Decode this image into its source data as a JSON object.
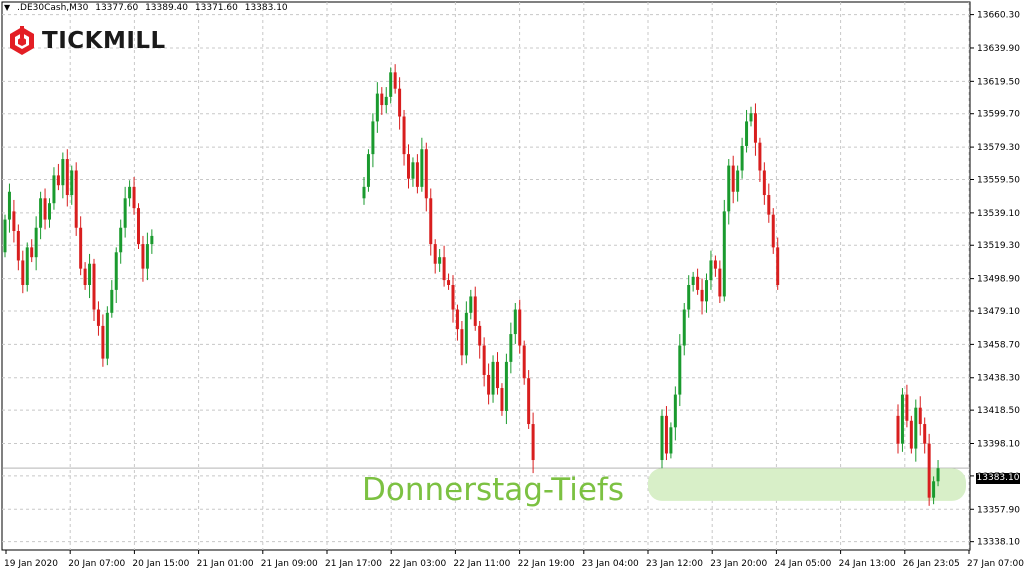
{
  "header": {
    "symbol": ".DE30Cash,M30",
    "open": "13377.60",
    "high": "13389.40",
    "low": "13371.60",
    "close": "13383.10"
  },
  "logo": {
    "text": "TICKMILL",
    "color": "#e31e24"
  },
  "annotation": {
    "text": "Donnerstag-Tiefs",
    "color": "#7cc142",
    "zone_low": 13363,
    "zone_high": 13383
  },
  "current_price": {
    "label": "13383.10",
    "value": 13383.1
  },
  "colors": {
    "bull": "#1a9a2e",
    "bear": "#d81e1e",
    "grid": "#c8c8c8",
    "zone": "#d8efc8"
  },
  "chart_data": {
    "type": "candlestick",
    "y_range": [
      13333,
      13668
    ],
    "y_ticks": [
      "13660.30",
      "13639.90",
      "13619.50",
      "13599.70",
      "13579.30",
      "13559.50",
      "13539.10",
      "13519.30",
      "13498.90",
      "13479.10",
      "13458.70",
      "13438.30",
      "13418.50",
      "13398.10",
      "13378.30",
      "13357.90",
      "13338.10"
    ],
    "x_ticks": [
      "19 Jan 2020",
      "20 Jan 07:00",
      "20 Jan 15:00",
      "21 Jan 01:00",
      "21 Jan 09:00",
      "21 Jan 17:00",
      "22 Jan 03:00",
      "22 Jan 11:00",
      "22 Jan 19:00",
      "23 Jan 04:00",
      "23 Jan 12:00",
      "23 Jan 20:00",
      "24 Jan 05:00",
      "24 Jan 13:00",
      "26 Jan 23:05",
      "27 Jan 07:00"
    ],
    "grid": true,
    "series": [
      {
        "points": [
          [
            13515,
            13535
          ],
          [
            13535,
            13552
          ],
          [
            13540,
            13528
          ],
          [
            13528,
            13510
          ],
          [
            13510,
            13495
          ],
          [
            13495,
            13518
          ],
          [
            13518,
            13512
          ],
          [
            13512,
            13530
          ],
          [
            13530,
            13548
          ],
          [
            13548,
            13535
          ],
          [
            13535,
            13545
          ],
          [
            13545,
            13562
          ],
          [
            13562,
            13556
          ],
          [
            13556,
            13572
          ],
          [
            13572,
            13550
          ],
          [
            13550,
            13565
          ],
          [
            13565,
            13530
          ],
          [
            13530,
            13505
          ],
          [
            13505,
            13495
          ],
          [
            13495,
            13508
          ],
          [
            13508,
            13480
          ],
          [
            13480,
            13470
          ],
          [
            13470,
            13450
          ],
          [
            13450,
            13478
          ],
          [
            13478,
            13492
          ],
          [
            13492,
            13515
          ],
          [
            13515,
            13530
          ],
          [
            13530,
            13548
          ],
          [
            13548,
            13555
          ],
          [
            13555,
            13542
          ],
          [
            13542,
            13520
          ],
          [
            13520,
            13505
          ],
          [
            13505,
            13520
          ],
          [
            13520,
            13525
          ]
        ]
      },
      {
        "points": [
          [
            13548,
            13555
          ],
          [
            13555,
            13575
          ],
          [
            13575,
            13595
          ],
          [
            13595,
            13612
          ],
          [
            13612,
            13605
          ],
          [
            13605,
            13610
          ],
          [
            13610,
            13625
          ],
          [
            13625,
            13615
          ],
          [
            13615,
            13598
          ],
          [
            13598,
            13575
          ],
          [
            13575,
            13560
          ],
          [
            13560,
            13570
          ],
          [
            13570,
            13555
          ],
          [
            13555,
            13578
          ],
          [
            13578,
            13548
          ],
          [
            13548,
            13520
          ],
          [
            13520,
            13508
          ],
          [
            13508,
            13512
          ],
          [
            13512,
            13498
          ],
          [
            13498,
            13495
          ],
          [
            13495,
            13480
          ],
          [
            13480,
            13468
          ],
          [
            13468,
            13452
          ],
          [
            13452,
            13478
          ],
          [
            13478,
            13488
          ],
          [
            13488,
            13470
          ],
          [
            13470,
            13458
          ],
          [
            13458,
            13440
          ],
          [
            13440,
            13428
          ],
          [
            13428,
            13448
          ],
          [
            13448,
            13432
          ],
          [
            13432,
            13418
          ],
          [
            13418,
            13448
          ],
          [
            13448,
            13465
          ],
          [
            13465,
            13480
          ],
          [
            13480,
            13458
          ],
          [
            13458,
            13438
          ],
          [
            13438,
            13410
          ],
          [
            13410,
            13388
          ]
        ]
      },
      {
        "points": [
          [
            13388,
            13415
          ],
          [
            13415,
            13392
          ],
          [
            13392,
            13408
          ],
          [
            13408,
            13428
          ],
          [
            13428,
            13458
          ],
          [
            13458,
            13480
          ],
          [
            13480,
            13495
          ],
          [
            13495,
            13500
          ],
          [
            13500,
            13492
          ],
          [
            13492,
            13485
          ],
          [
            13485,
            13498
          ],
          [
            13498,
            13510
          ],
          [
            13510,
            13505
          ],
          [
            13505,
            13488
          ],
          [
            13488,
            13540
          ],
          [
            13540,
            13568
          ],
          [
            13568,
            13552
          ],
          [
            13552,
            13565
          ],
          [
            13565,
            13580
          ],
          [
            13580,
            13595
          ],
          [
            13595,
            13600
          ],
          [
            13600,
            13582
          ],
          [
            13582,
            13565
          ],
          [
            13565,
            13550
          ],
          [
            13550,
            13538
          ],
          [
            13538,
            13518
          ],
          [
            13518,
            13495
          ]
        ]
      },
      {
        "points": [
          [
            13415,
            13398
          ],
          [
            13398,
            13428
          ],
          [
            13428,
            13412
          ],
          [
            13412,
            13395
          ],
          [
            13395,
            13420
          ],
          [
            13420,
            13410
          ],
          [
            13410,
            13398
          ],
          [
            13398,
            13365
          ],
          [
            13365,
            13375
          ],
          [
            13375,
            13383
          ]
        ]
      }
    ]
  }
}
